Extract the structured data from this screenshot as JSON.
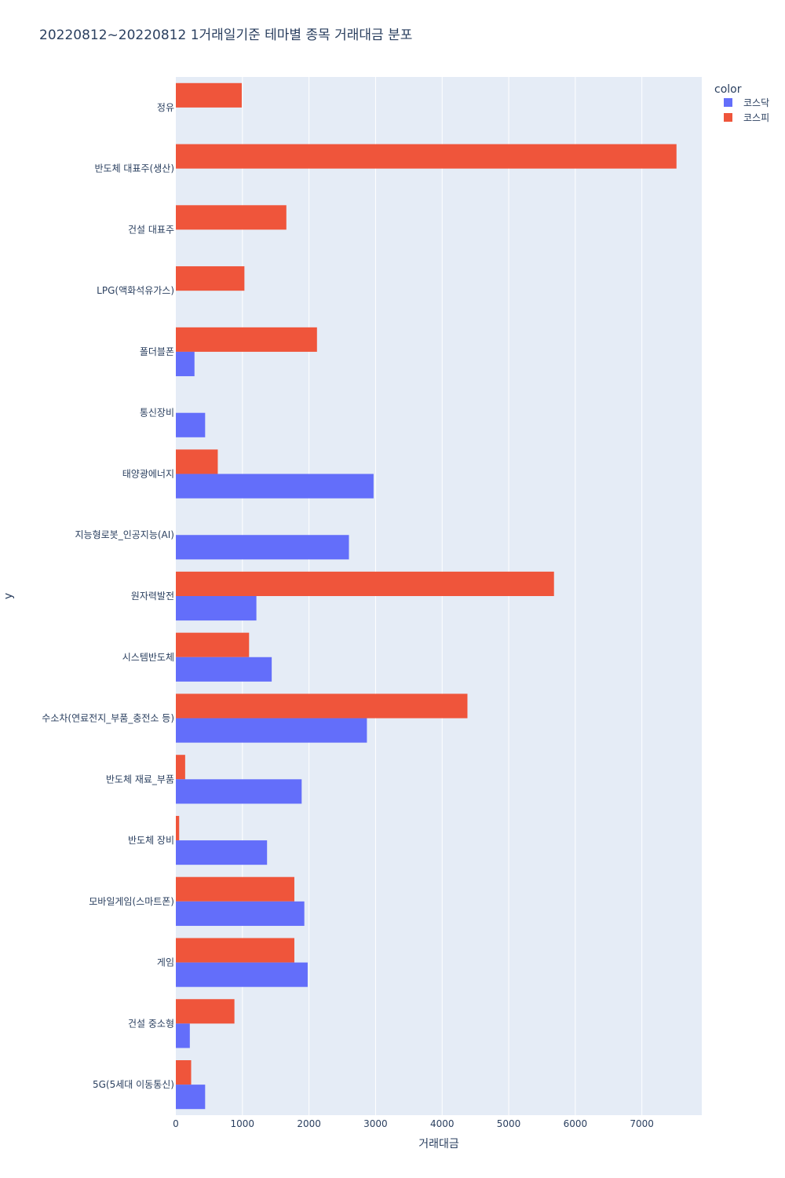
{
  "chart_data": {
    "type": "bar",
    "orientation": "horizontal",
    "barmode": "group",
    "title": "20220812~20220812 1거래일기준 테마별 종목 거래대금 분포",
    "xlabel": "거래대금",
    "ylabel": "y",
    "xlim": [
      0,
      7900
    ],
    "xticks": [
      0,
      1000,
      2000,
      3000,
      4000,
      5000,
      6000,
      7000
    ],
    "xtick_labels": [
      "0",
      "1000",
      "2000",
      "3000",
      "4000",
      "5000",
      "6000",
      "7000"
    ],
    "grid": true,
    "legend": {
      "title": "color",
      "placement": "top-right"
    },
    "categories": [
      "정유",
      "반도체 대표주(생산)",
      "건설 대표주",
      "LPG(액화석유가스)",
      "폴더블폰",
      "통신장비",
      "태양광에너지",
      "지능형로봇_인공지능(AI)",
      "원자력발전",
      "시스템반도체",
      "수소차(연료전지_부품_충전소 등)",
      "반도체 재료_부품",
      "반도체 장비",
      "모바일게임(스마트폰)",
      "게임",
      "건설 중소형",
      "5G(5세대 이동통신)"
    ],
    "series": [
      {
        "name": "코스닥",
        "color": "#636efa",
        "values": [
          0,
          0,
          0,
          0,
          280,
          440,
          2970,
          2600,
          1210,
          1440,
          2870,
          1890,
          1370,
          1930,
          1980,
          210,
          440
        ]
      },
      {
        "name": "코스피",
        "color": "#ef553b",
        "values": [
          990,
          7520,
          1660,
          1030,
          2120,
          0,
          630,
          0,
          5680,
          1100,
          4380,
          140,
          50,
          1780,
          1780,
          880,
          230
        ]
      }
    ]
  }
}
